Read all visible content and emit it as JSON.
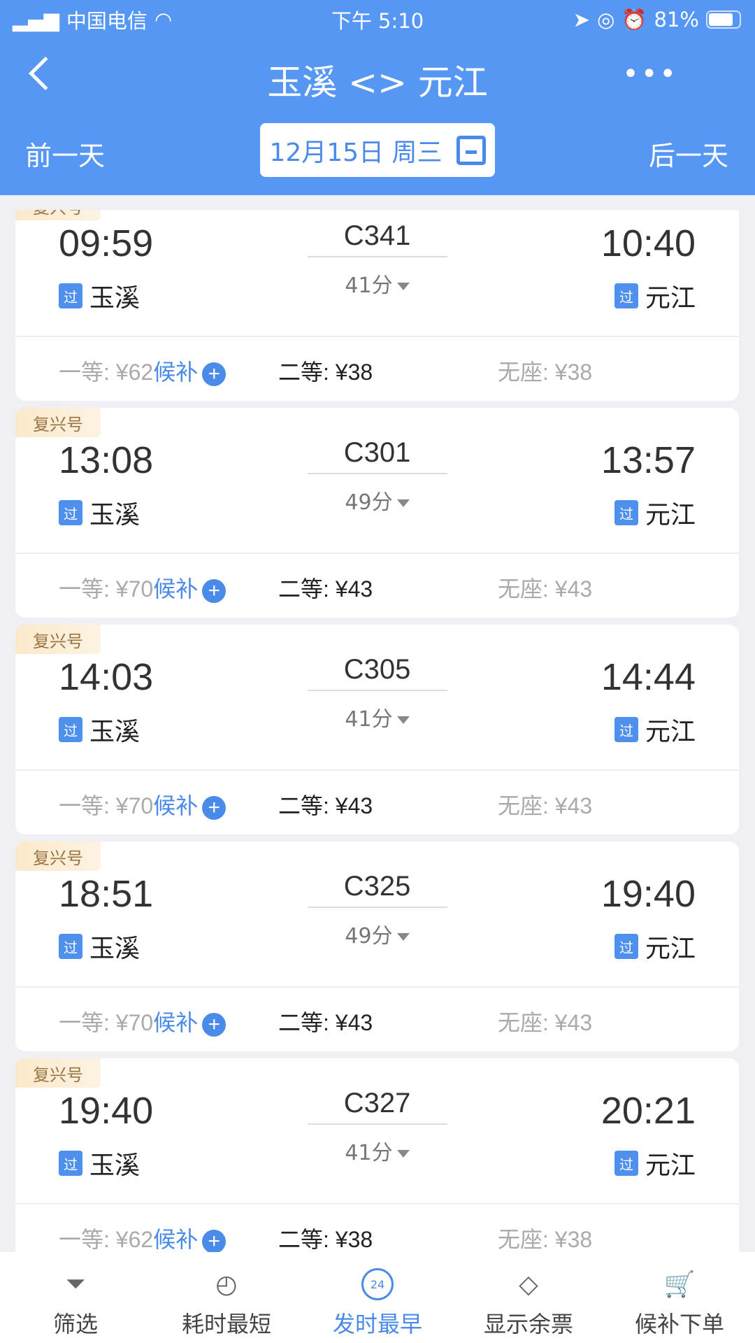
{
  "status": {
    "carrier": "中国电信",
    "time": "下午 5:10",
    "battery": "81%"
  },
  "header": {
    "title": "玉溪 <> 元江",
    "prev": "前一天",
    "next": "后一天",
    "date": "12月15日 周三"
  },
  "trains": [
    {
      "badge": "复兴号",
      "dep": "09:59",
      "code": "C341",
      "dur": "41分",
      "arr": "10:40",
      "from": "玉溪",
      "to": "元江",
      "tag": "过",
      "first": "一等: ¥62",
      "hb": "候补",
      "second": "二等: ¥38",
      "none": "无座: ¥38"
    },
    {
      "badge": "复兴号",
      "dep": "13:08",
      "code": "C301",
      "dur": "49分",
      "arr": "13:57",
      "from": "玉溪",
      "to": "元江",
      "tag": "过",
      "first": "一等: ¥70",
      "hb": "候补",
      "second": "二等: ¥43",
      "none": "无座: ¥43"
    },
    {
      "badge": "复兴号",
      "dep": "14:03",
      "code": "C305",
      "dur": "41分",
      "arr": "14:44",
      "from": "玉溪",
      "to": "元江",
      "tag": "过",
      "first": "一等: ¥70",
      "hb": "候补",
      "second": "二等: ¥43",
      "none": "无座: ¥43"
    },
    {
      "badge": "复兴号",
      "dep": "18:51",
      "code": "C325",
      "dur": "49分",
      "arr": "19:40",
      "from": "玉溪",
      "to": "元江",
      "tag": "过",
      "first": "一等: ¥70",
      "hb": "候补",
      "second": "二等: ¥43",
      "none": "无座: ¥43"
    },
    {
      "badge": "复兴号",
      "dep": "19:40",
      "code": "C327",
      "dur": "41分",
      "arr": "20:21",
      "from": "玉溪",
      "to": "元江",
      "tag": "过",
      "first": "一等: ¥62",
      "hb": "候补",
      "second": "二等: ¥38",
      "none": "无座: ¥38"
    }
  ],
  "bottom": {
    "tabs": [
      {
        "label": "筛选",
        "icon": "filter-icon"
      },
      {
        "label": "耗时最短",
        "icon": "timer-icon"
      },
      {
        "label": "发时最早",
        "icon": "clock-24-icon",
        "active": true,
        "icon_text": "24"
      },
      {
        "label": "显示余票",
        "icon": "tag-icon"
      },
      {
        "label": "候补下单",
        "icon": "cart-icon"
      }
    ]
  },
  "colors": {
    "primary": "#5597f2",
    "accent": "#4a8ae8"
  }
}
